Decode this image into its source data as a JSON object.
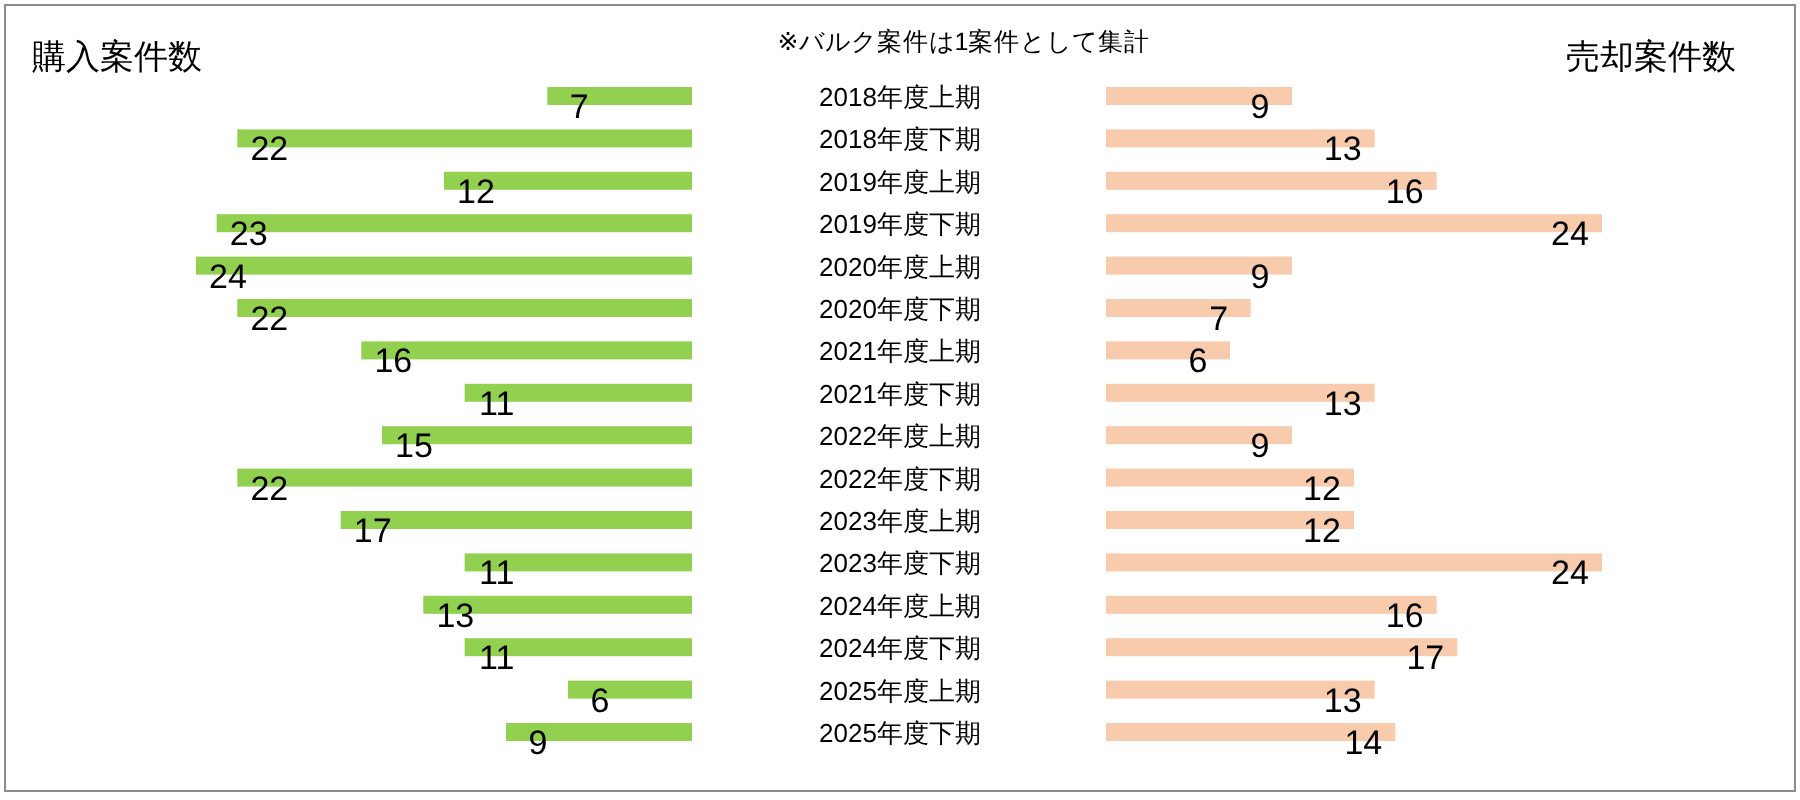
{
  "chart_data": [
    {
      "type": "bar",
      "orientation": "horizontal",
      "data_labels": true,
      "title": "購入案件数",
      "color": "#92d050",
      "annotations": [
        "※バルク案件は1案件として集計"
      ],
      "categories": [
        "2018年度上期",
        "2018年度下期",
        "2019年度上期",
        "2019年度下期",
        "2020年度上期",
        "2020年度下期",
        "2021年度上期",
        "2021年度下期",
        "2022年度上期",
        "2022年度下期",
        "2023年度上期",
        "2023年度下期",
        "2024年度上期",
        "2024年度下期",
        "2025年度上期",
        "2025年度下期"
      ],
      "values": [
        7,
        22,
        12,
        23,
        24,
        22,
        16,
        11,
        15,
        22,
        17,
        11,
        13,
        11,
        6,
        9
      ]
    },
    {
      "type": "bar",
      "orientation": "horizontal",
      "data_labels": true,
      "title": "売却案件数",
      "color": "#f8cbad",
      "categories": [
        null,
        null,
        null,
        null,
        null,
        null,
        null,
        null,
        null,
        null,
        null,
        null,
        null,
        null,
        null,
        null
      ],
      "values": [
        9,
        13,
        16,
        24,
        9,
        7,
        6,
        13,
        9,
        12,
        12,
        24,
        16,
        17,
        13,
        14
      ]
    }
  ]
}
